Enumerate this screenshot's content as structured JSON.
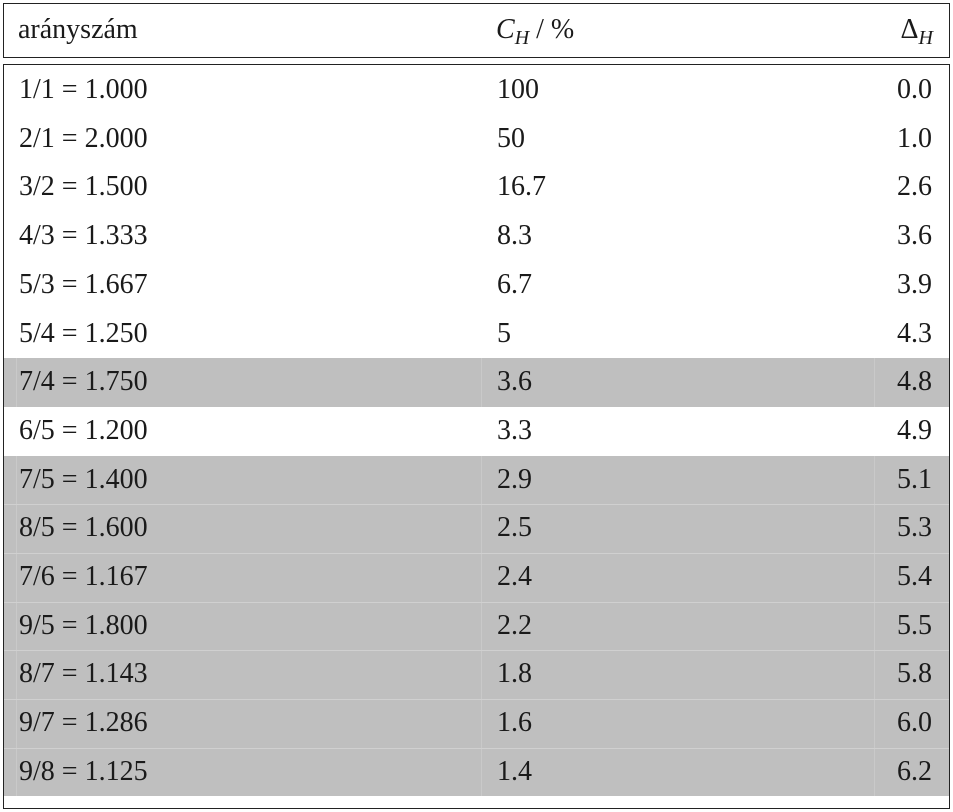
{
  "header": {
    "col1": "arányszám",
    "col2_main": "C",
    "col2_sub": "H",
    "col2_unit": " / %",
    "col3_main": "Δ",
    "col3_sub": "H"
  },
  "rows": [
    {
      "ratio": "1/1 = 1.000",
      "ch": "100",
      "dh": "0.0",
      "shaded": false
    },
    {
      "ratio": "2/1 = 2.000",
      "ch": "50",
      "dh": "1.0",
      "shaded": false
    },
    {
      "ratio": "3/2 = 1.500",
      "ch": "16.7",
      "dh": "2.6",
      "shaded": false
    },
    {
      "ratio": "4/3 = 1.333",
      "ch": "8.3",
      "dh": "3.6",
      "shaded": false
    },
    {
      "ratio": "5/3 = 1.667",
      "ch": "6.7",
      "dh": "3.9",
      "shaded": false
    },
    {
      "ratio": "5/4 = 1.250",
      "ch": "5",
      "dh": "4.3",
      "shaded": false
    },
    {
      "ratio": "7/4 = 1.750",
      "ch": "3.6",
      "dh": "4.8",
      "shaded": true
    },
    {
      "ratio": "6/5 = 1.200",
      "ch": "3.3",
      "dh": "4.9",
      "shaded": false
    },
    {
      "ratio": "7/5 = 1.400",
      "ch": "2.9",
      "dh": "5.1",
      "shaded": true
    },
    {
      "ratio": "8/5 = 1.600",
      "ch": "2.5",
      "dh": "5.3",
      "shaded": true
    },
    {
      "ratio": "7/6 = 1.167",
      "ch": "2.4",
      "dh": "5.4",
      "shaded": true
    },
    {
      "ratio": "9/5 = 1.800",
      "ch": "2.2",
      "dh": "5.5",
      "shaded": true
    },
    {
      "ratio": "8/7 = 1.143",
      "ch": "1.8",
      "dh": "5.8",
      "shaded": true
    },
    {
      "ratio": "9/7 = 1.286",
      "ch": "1.6",
      "dh": "6.0",
      "shaded": true
    },
    {
      "ratio": "9/8 = 1.125",
      "ch": "1.4",
      "dh": "6.2",
      "shaded": true
    }
  ],
  "colors": {
    "shaded_row": "#bfbfbf",
    "border": "#222222",
    "text": "#1a1a1a"
  }
}
